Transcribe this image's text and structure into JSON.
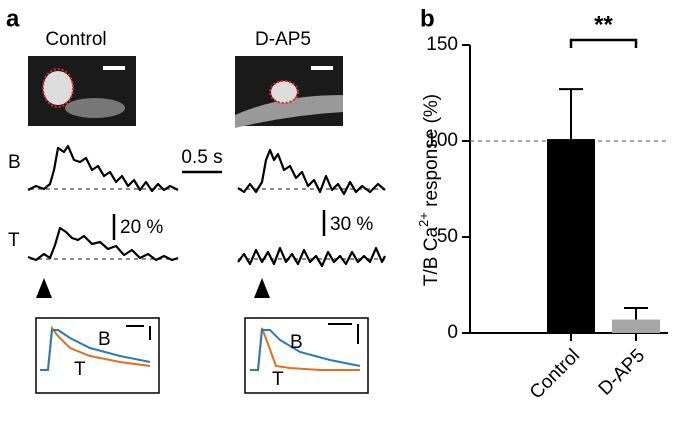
{
  "panel_a": {
    "label": "a",
    "conditions": [
      "Control",
      "D-AP5"
    ],
    "rows": [
      "B",
      "T"
    ],
    "time_scale": "0.5 s",
    "amp_scales": [
      "20 %",
      "30 %"
    ],
    "inset_labels": [
      "B",
      "T"
    ]
  },
  "chart_data": {
    "type": "bar",
    "label": "b",
    "ylabel": [
      "T/B Ca",
      "2+",
      " response (%)"
    ],
    "categories": [
      "Control",
      "D-AP5"
    ],
    "values": [
      101,
      7
    ],
    "errors": [
      26,
      6
    ],
    "colors": [
      "#000000",
      "#a6a6a6"
    ],
    "ylim": [
      0,
      150
    ],
    "yticks": [
      0,
      50,
      100,
      150
    ],
    "reference_line": 100,
    "significance": "**"
  }
}
